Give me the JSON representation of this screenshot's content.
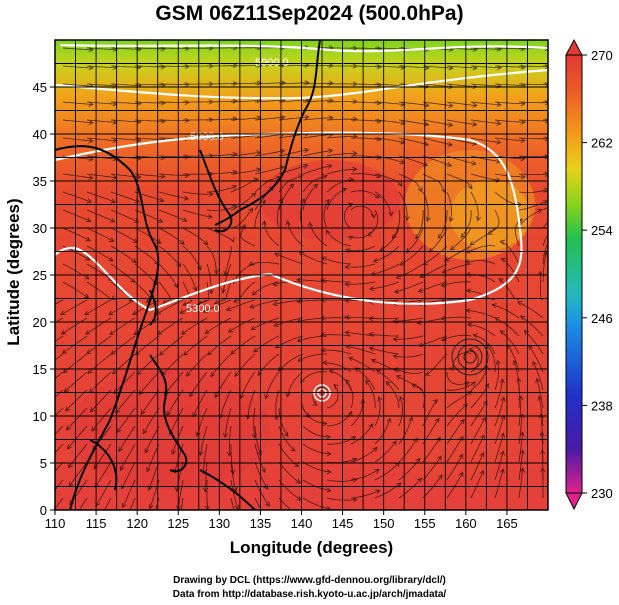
{
  "title": "GSM 06Z11Sep2024 (500.0hPa)",
  "axes": {
    "xlabel": "Longitude (degrees)",
    "ylabel": "Latitude  (degrees)",
    "x_range": [
      110,
      170
    ],
    "y_range": [
      0,
      50
    ],
    "x_ticks": [
      "110",
      "115",
      "120",
      "125",
      "130",
      "135",
      "140",
      "145",
      "150",
      "155",
      "160",
      "165"
    ],
    "y_ticks": [
      "0",
      "5",
      "10",
      "15",
      "20",
      "25",
      "30",
      "35",
      "40",
      "45"
    ]
  },
  "colorbar": {
    "range": [
      230,
      270
    ],
    "labels": [
      "270",
      "262",
      "254",
      "246",
      "238",
      "230"
    ],
    "colors": [
      "#e0228c",
      "#4b1aa6",
      "#2030c8",
      "#1a8ee6",
      "#24b8c0",
      "#22c050",
      "#8ad21a",
      "#e8d21a",
      "#f39a1a",
      "#ec5a28",
      "#e23a36"
    ]
  },
  "contours": [
    {
      "label": "5300.0"
    },
    {
      "label": "5900.0"
    },
    {
      "label": "5900.0"
    }
  ],
  "credits": {
    "line1": "Drawing by DCL (https://www.gfd-dennou.org/library/dcl/)",
    "line2": "Data from http://database.rish.kyoto-u.ac.jp/arch/jmadata/"
  }
}
